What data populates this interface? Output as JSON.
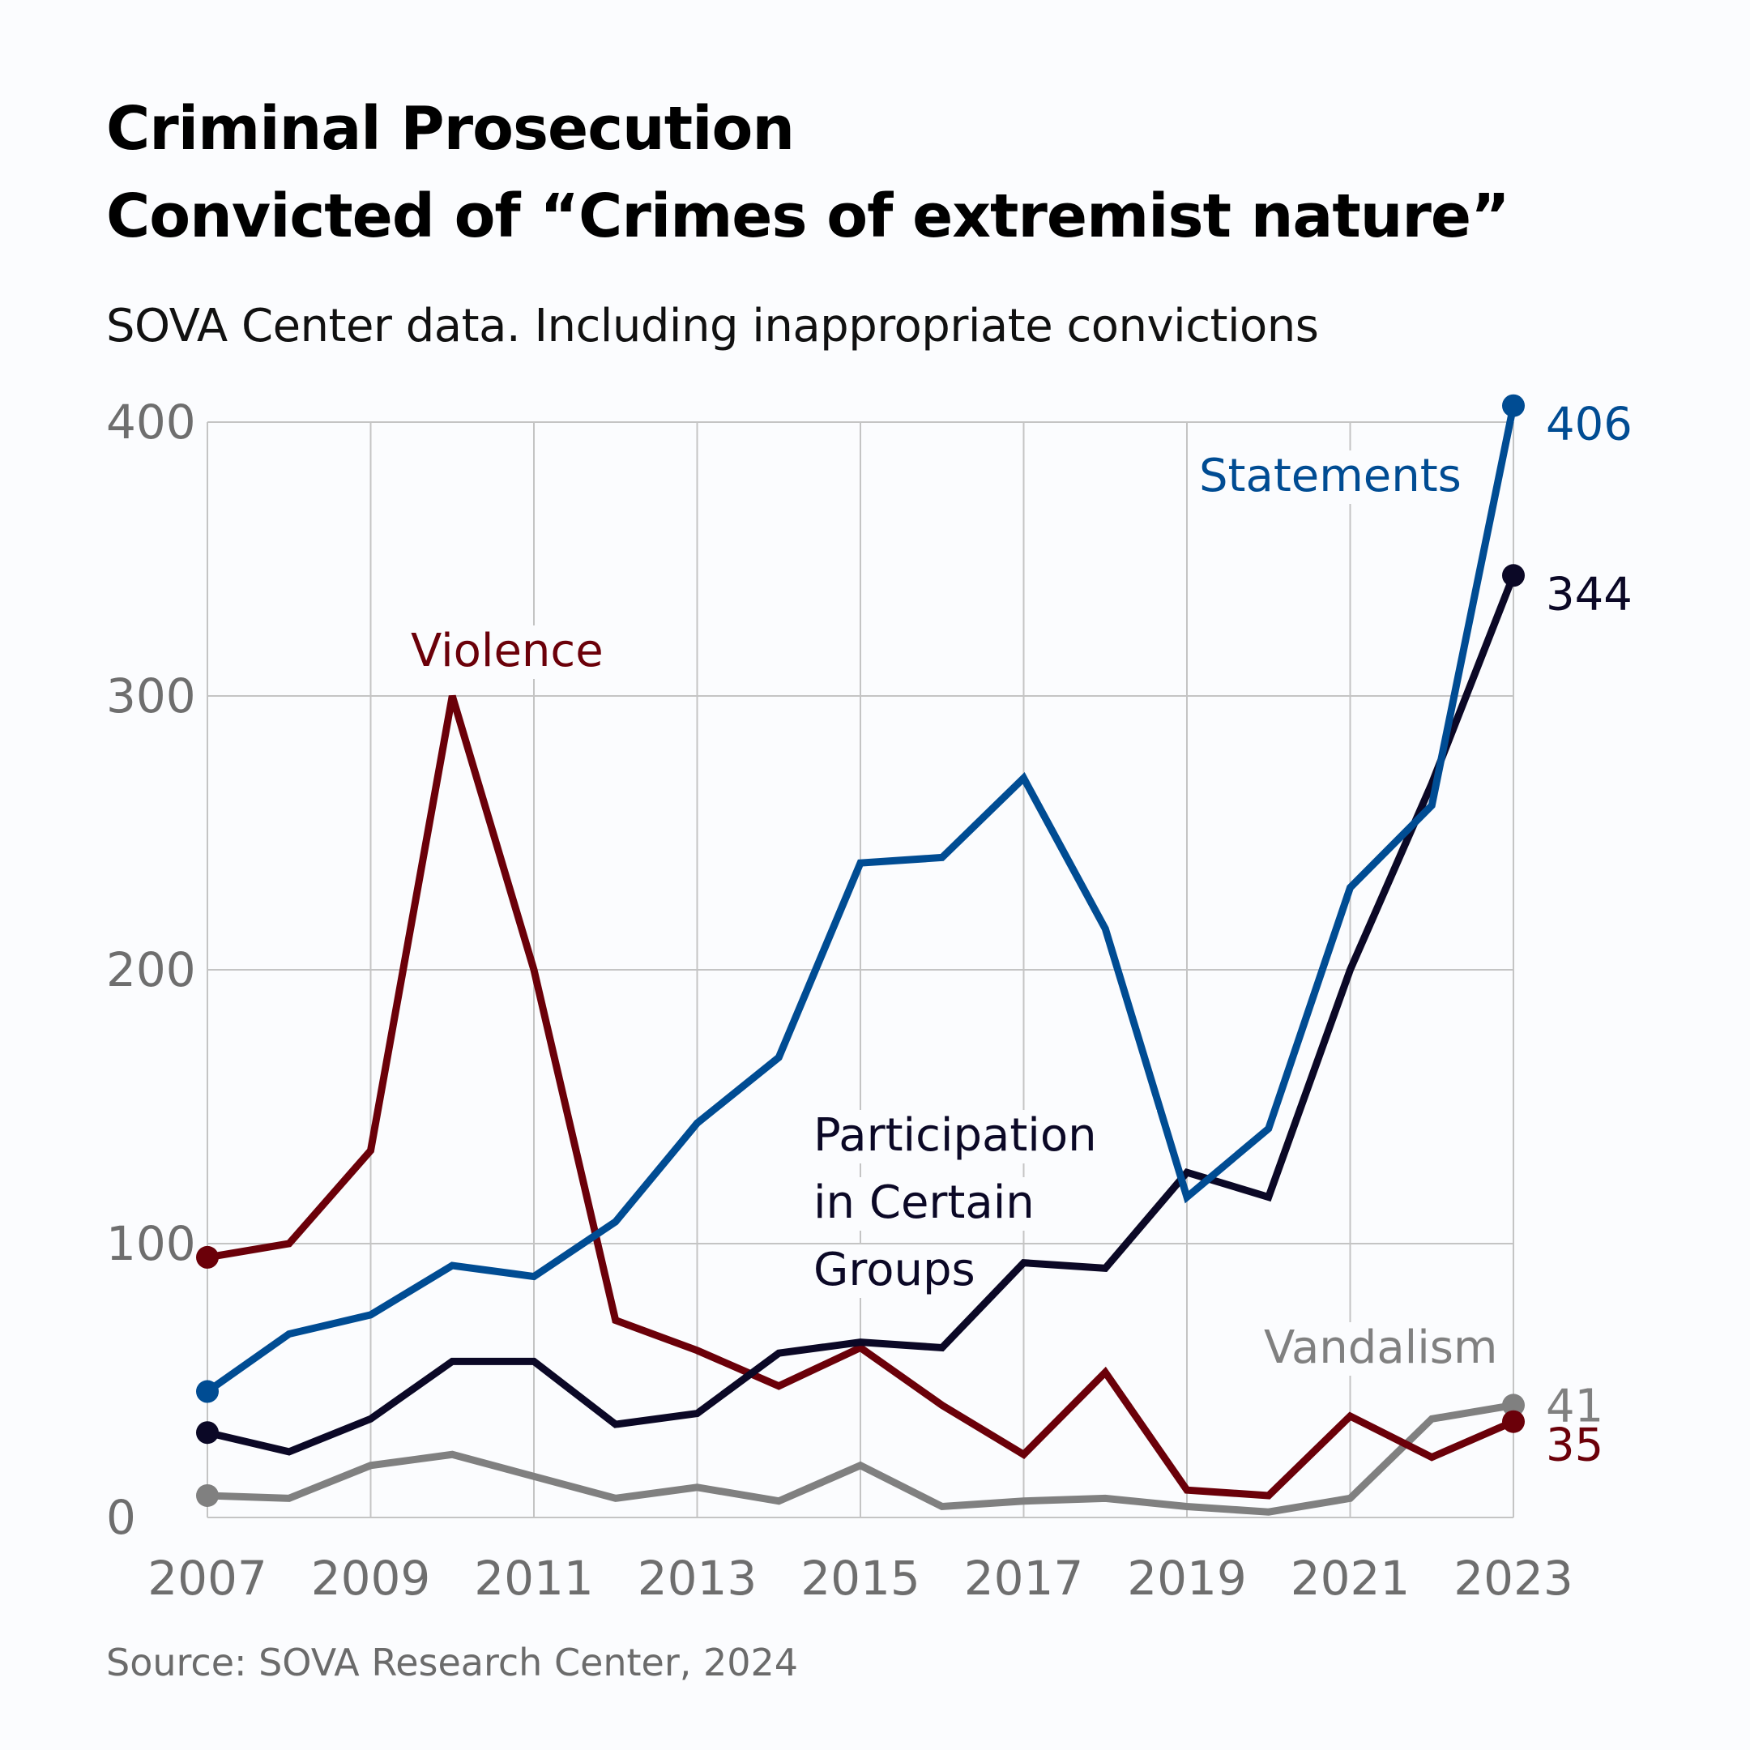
{
  "header": {
    "title_line1": "Criminal Prosecution",
    "title_line2": "Convicted of “Crimes of extremist nature”",
    "subtitle": "SOVA Center data. Including inappropriate convictions"
  },
  "footer": {
    "source": "Source: SOVA Research Center, 2024"
  },
  "chart_data": {
    "type": "line",
    "title": "Criminal Prosecution — Convicted of “Crimes of extremist nature”",
    "subtitle": "SOVA Center data. Including inappropriate convictions",
    "xlabel": "",
    "ylabel": "",
    "x": [
      2007,
      2008,
      2009,
      2010,
      2011,
      2012,
      2013,
      2014,
      2015,
      2016,
      2017,
      2018,
      2019,
      2020,
      2021,
      2022,
      2023
    ],
    "x_ticks": [
      "2007",
      "2009",
      "2011",
      "2013",
      "2015",
      "2017",
      "2019",
      "2021",
      "2023"
    ],
    "y_ticks": [
      "0",
      "100",
      "200",
      "300",
      "400"
    ],
    "ylim": [
      0,
      400
    ],
    "xlim": [
      2007,
      2023
    ],
    "grid": true,
    "legend": "inline labels",
    "series": [
      {
        "name": "Violence",
        "color": "#6b0009",
        "values": [
          95,
          100,
          134,
          300,
          200,
          72,
          61,
          48,
          62,
          41,
          23,
          53,
          10,
          8,
          37,
          22,
          35
        ],
        "end_label": "35"
      },
      {
        "name": "Statements",
        "color": "#004c93",
        "values": [
          46,
          67,
          74,
          92,
          88,
          108,
          144,
          168,
          239,
          241,
          270,
          215,
          117,
          142,
          230,
          260,
          406
        ],
        "end_label": "406"
      },
      {
        "name": "Participation in Certain Groups",
        "label_lines": [
          "Participation",
          "in Certain",
          "Groups"
        ],
        "color": "#0b0826",
        "values": [
          31,
          24,
          36,
          57,
          57,
          34,
          38,
          60,
          64,
          62,
          93,
          91,
          126,
          117,
          200,
          268,
          344
        ],
        "end_label": "344"
      },
      {
        "name": "Vandalism",
        "color": "#808080",
        "values": [
          8,
          7,
          19,
          23,
          15,
          7,
          11,
          6,
          19,
          4,
          6,
          7,
          4,
          2,
          7,
          36,
          41
        ],
        "end_label": "41"
      }
    ]
  }
}
